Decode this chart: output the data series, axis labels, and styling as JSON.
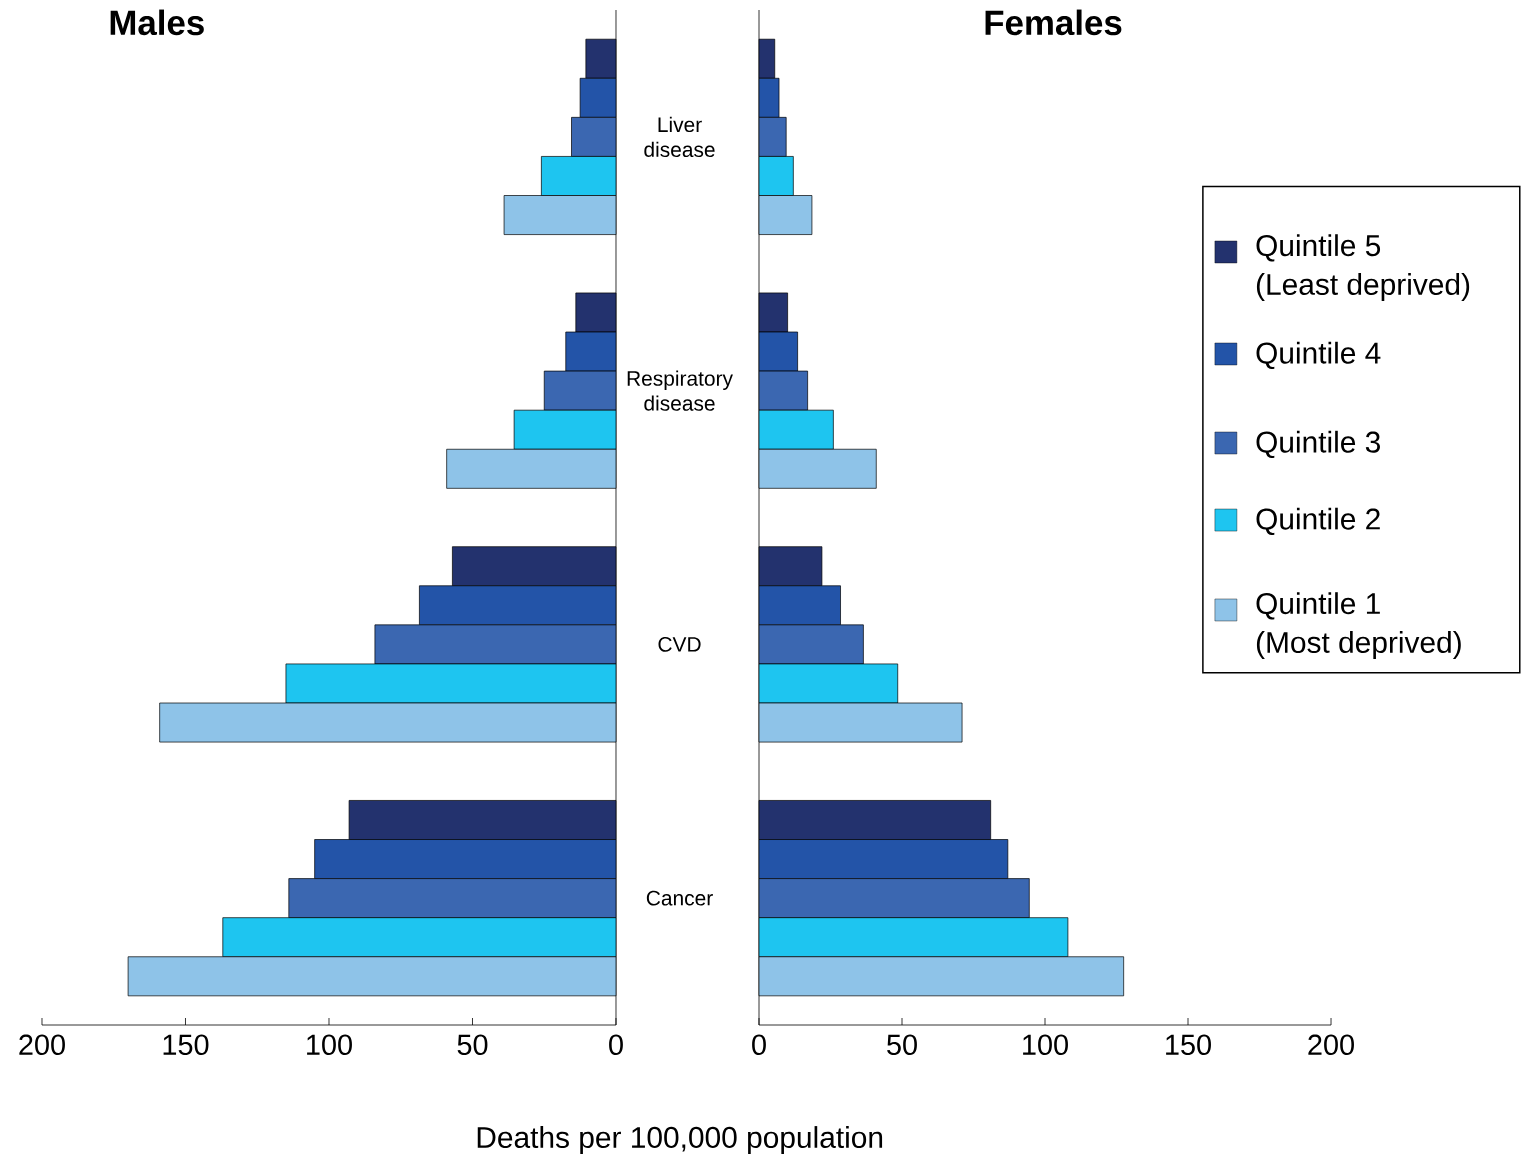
{
  "chart_data": [
    {
      "type": "bar",
      "orientation": "horizontal",
      "title": "Males",
      "xlabel": "Deaths per 100,000 population",
      "categories": [
        "Liver disease",
        "Respiratory disease",
        "CVD",
        "Cancer"
      ],
      "xlim": [
        200,
        0
      ],
      "xticks": [
        200,
        150,
        100,
        50,
        0
      ],
      "series": [
        {
          "color": "#23326e",
          "values": [
            10.5,
            14,
            57,
            93
          ]
        },
        {
          "color": "#2354a8",
          "values": [
            12.5,
            17.5,
            68.5,
            105
          ]
        },
        {
          "color": "#3b67b1",
          "values": [
            15.5,
            25,
            84,
            114
          ]
        },
        {
          "color": "#1ec5f0",
          "values": [
            26,
            35.5,
            115,
            137
          ]
        },
        {
          "color": "#8ec3e8",
          "values": [
            39,
            59,
            159,
            170
          ]
        }
      ]
    },
    {
      "type": "bar",
      "orientation": "horizontal",
      "title": "Females",
      "legend": "right",
      "tick_labels": "x",
      "categories": [
        null,
        null,
        null,
        null
      ],
      "xlim": [
        0,
        200
      ],
      "xticks": [
        0,
        50,
        100,
        150,
        200
      ],
      "series": [
        {
          "name": "Quintile 5 (Least deprived)",
          "color": "#23326e",
          "values": [
            5.5,
            10,
            22,
            81
          ]
        },
        {
          "name": "Quintile 4",
          "color": "#2354a8",
          "values": [
            7,
            13.5,
            28.5,
            87
          ]
        },
        {
          "name": "Quintile 3",
          "color": "#3b67b1",
          "values": [
            9.5,
            17,
            36.5,
            94.5
          ]
        },
        {
          "name": "Quintile 2",
          "color": "#1ec5f0",
          "values": [
            12,
            26,
            48.5,
            108
          ]
        },
        {
          "name": "Quintile 1 (Most deprived)",
          "color": "#8ec3e8",
          "values": [
            18.5,
            41,
            71,
            127.5
          ]
        }
      ]
    }
  ]
}
